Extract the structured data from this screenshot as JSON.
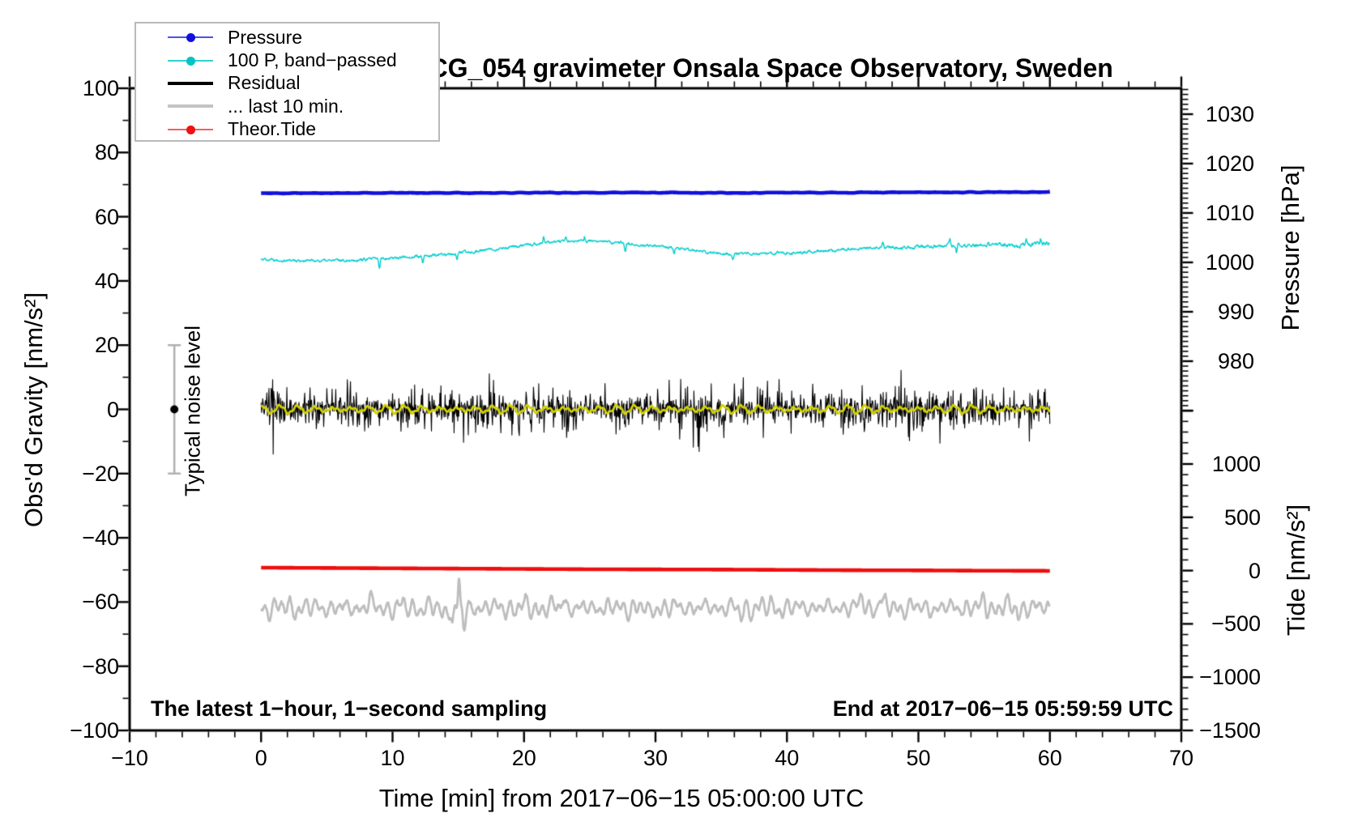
{
  "title": "SCG_054 gravimeter Onsala Space Observatory, Sweden",
  "annotations": {
    "sampling": "The latest 1−hour, 1−second sampling",
    "end_time": "End at 2017−06−15 05:59:59 UTC"
  },
  "noise_bar": {
    "label": "Typical noise level",
    "x_min": -6.6,
    "center_value": 0,
    "half_range": 20,
    "color": "#b0b0b0",
    "dot_color": "#000000"
  },
  "legend": {
    "items": [
      {
        "label": "Pressure",
        "style": "line-dot",
        "line_color": "#5050e8",
        "dot_color": "#1111dd"
      },
      {
        "label": "100 P, band−passed",
        "style": "line-dot",
        "line_color": "#30d2d2",
        "dot_color": "#00c4c4"
      },
      {
        "label": "Residual",
        "style": "thick-line",
        "line_color": "#000000"
      },
      {
        "label": "... last 10 min.",
        "style": "thick-line",
        "line_color": "#c3c3c3"
      },
      {
        "label": "Theor.Tide",
        "style": "line-dot",
        "line_color": "#f26060",
        "dot_color": "#ee1111"
      }
    ]
  },
  "axes": {
    "bottom": {
      "title": "Time [min] from 2017−06−15 05:00:00 UTC",
      "range": [
        -10,
        70
      ],
      "major_ticks": [
        -10,
        0,
        10,
        20,
        30,
        40,
        50,
        60,
        70
      ],
      "tick_labels": [
        "−10",
        "0",
        "10",
        "20",
        "30",
        "40",
        "50",
        "60",
        "70"
      ],
      "minor_step": 2
    },
    "left": {
      "title": "Obs'd Gravity [nm/s²]",
      "range": [
        -100,
        100
      ],
      "major_ticks": [
        100,
        80,
        60,
        40,
        20,
        0,
        -20,
        -40,
        -60,
        -80,
        -100
      ],
      "tick_labels": [
        "100",
        "80",
        "60",
        "40",
        "20",
        "0",
        "−20",
        "−40",
        "−60",
        "−80",
        "−100"
      ],
      "minor_step": 10
    },
    "right_pressure": {
      "title": "Pressure [hPa]",
      "major_ticks": [
        1030,
        1020,
        1010,
        1000,
        990,
        980
      ],
      "tick_labels": [
        "1030",
        "1020",
        "1010",
        "1000",
        "990",
        "980"
      ],
      "extra_major_ticks": [
        970
      ],
      "minor_step": 1,
      "minor_range": [
        971,
        1035
      ]
    },
    "right_tide": {
      "title": "Tide [nm/s²]",
      "major_ticks": [
        1000,
        500,
        0,
        -500,
        -1000,
        -1500
      ],
      "tick_labels": [
        "1000",
        "500",
        "0",
        "−500",
        "−1000",
        "−1500"
      ],
      "extra_major_ticks": [
        1500
      ],
      "minor_step": 100,
      "minor_range": [
        -1400,
        1500
      ]
    }
  },
  "chart_data": {
    "type": "line",
    "x_unit": "min",
    "sampled_range": [
      0,
      60
    ],
    "series": [
      {
        "id": "residual",
        "name": "Residual",
        "color": "#000000",
        "width": 1.1,
        "value_axis": "gravity",
        "mean": 0,
        "typ_amp": 6.0,
        "tail_amp": 8.5,
        "points_per_min": 25,
        "clip": 19,
        "seed": 33
      },
      {
        "id": "residual_smooth",
        "name": "Residual smoothed",
        "color": "#d2d200",
        "width": 2.8,
        "value_axis": "gravity",
        "mean": 0,
        "amp": 1.1,
        "period_min": 1.35,
        "seed": 44
      },
      {
        "id": "band_passed",
        "name": "100 P, band−passed",
        "color": "#00cccc",
        "width": 1.4,
        "value_axis": "gravity",
        "anchor_step": 2.5,
        "noise_amp": 0.55,
        "noise_growth": 0.25,
        "seed": 22,
        "anchors": [
          46.9,
          46.4,
          46.3,
          46.6,
          47.2,
          47.7,
          48.6,
          49.8,
          51.0,
          52.3,
          52.4,
          51.8,
          50.8,
          49.6,
          48.5,
          48.3,
          48.8,
          49.3,
          49.9,
          50.3,
          50.6,
          51.0,
          51.2,
          51.1,
          51.9
        ],
        "spikes": [
          [
            9.0,
            -3.4
          ],
          [
            12.3,
            -2.6
          ],
          [
            14.9,
            -1.8
          ],
          [
            21.5,
            1.8
          ],
          [
            23.2,
            1.5
          ],
          [
            24.6,
            1.6
          ],
          [
            27.7,
            -2.2
          ],
          [
            31.4,
            -1.9
          ],
          [
            35.9,
            -1.5
          ],
          [
            47.3,
            1.4
          ],
          [
            52.4,
            2.0
          ],
          [
            52.9,
            -2.2
          ],
          [
            55.3,
            1.6
          ],
          [
            58.2,
            1.4
          ],
          [
            59.3,
            1.8
          ]
        ]
      },
      {
        "id": "pressure",
        "name": "Pressure",
        "color": "#1010dc",
        "width": 4.6,
        "value_axis": "gravity",
        "anchor_step": 5,
        "noise_amp": 0.06,
        "seed": 11,
        "anchors": [
          67.3,
          67.35,
          67.4,
          67.4,
          67.45,
          67.5,
          67.5,
          67.45,
          67.5,
          67.55,
          67.6,
          67.65,
          67.7
        ],
        "pressure_hpa_approx": 1014
      },
      {
        "id": "theor_tide",
        "name": "Theor.Tide",
        "color": "#ee0e0e",
        "width": 4.6,
        "value_axis": "gravity",
        "anchor_step": 5,
        "anchors": [
          -49.3,
          -49.4,
          -49.5,
          -49.6,
          -49.7,
          -49.8,
          -49.85,
          -49.9,
          -50.0,
          -50.1,
          -50.15,
          -50.25,
          -50.3
        ]
      },
      {
        "id": "residual_last10",
        "name": "... last 10 min.",
        "color": "#bdbdbd",
        "width": 2.8,
        "value_axis": "gravity",
        "base": -61.8,
        "jitter": 0.5,
        "seed": 55,
        "cap_max": -51.5,
        "components": [
          [
            0.62,
            1.6
          ],
          [
            1.05,
            1.15
          ],
          [
            2.3,
            0.85
          ]
        ],
        "amp_mod_period": 9,
        "events": [
          [
            15.05,
            9.3,
            0.1
          ],
          [
            14.55,
            -5.0,
            0.13
          ],
          [
            15.45,
            -6.3,
            0.15
          ],
          [
            45.7,
            3.5,
            0.18
          ],
          [
            47.1,
            3.2,
            0.14
          ],
          [
            8.3,
            2.8,
            0.15
          ],
          [
            29.5,
            -2.6,
            0.2
          ],
          [
            13.8,
            -3.2,
            0.14
          ],
          [
            23.0,
            3.0,
            0.16
          ],
          [
            36.5,
            -2.8,
            0.18
          ],
          [
            55.0,
            3.0,
            0.15
          ],
          [
            57.6,
            -2.5,
            0.13
          ]
        ]
      }
    ]
  }
}
